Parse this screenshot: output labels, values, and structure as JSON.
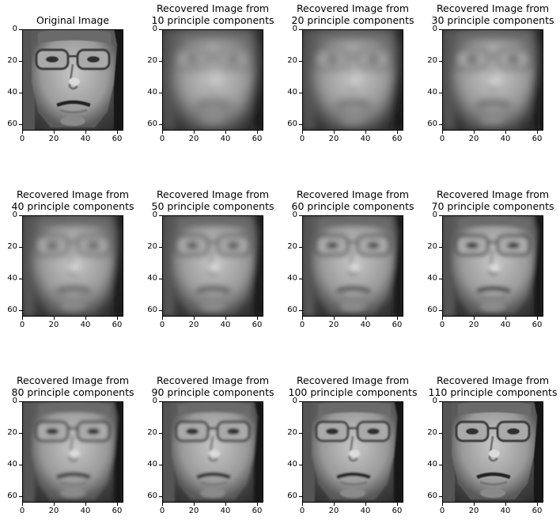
{
  "chart_data": {
    "type": "image-grid",
    "rows": 3,
    "cols": 4,
    "image_size": [
      64,
      64
    ],
    "colormap": "gray",
    "x_ticks": [
      "0",
      "20",
      "40",
      "60"
    ],
    "y_ticks": [
      "0",
      "20",
      "40",
      "60"
    ],
    "panels": [
      {
        "title_lines": [
          "Original Image"
        ],
        "components": null
      },
      {
        "title_lines": [
          "Recovered Image from",
          "10 principle components"
        ],
        "components": 10
      },
      {
        "title_lines": [
          "Recovered Image from",
          "20 principle components"
        ],
        "components": 20
      },
      {
        "title_lines": [
          "Recovered Image from",
          "30 principle components"
        ],
        "components": 30
      },
      {
        "title_lines": [
          "Recovered Image from",
          "40 principle components"
        ],
        "components": 40
      },
      {
        "title_lines": [
          "Recovered Image from",
          "50 principle components"
        ],
        "components": 50
      },
      {
        "title_lines": [
          "Recovered Image from",
          "60 principle components"
        ],
        "components": 60
      },
      {
        "title_lines": [
          "Recovered Image from",
          "70 principle components"
        ],
        "components": 70
      },
      {
        "title_lines": [
          "Recovered Image from",
          "80 principle components"
        ],
        "components": 80
      },
      {
        "title_lines": [
          "Recovered Image from",
          "90 principle components"
        ],
        "components": 90
      },
      {
        "title_lines": [
          "Recovered Image from",
          "100 principle components"
        ],
        "components": 100
      },
      {
        "title_lines": [
          "Recovered Image from",
          "110 principle components"
        ],
        "components": 110
      }
    ]
  }
}
